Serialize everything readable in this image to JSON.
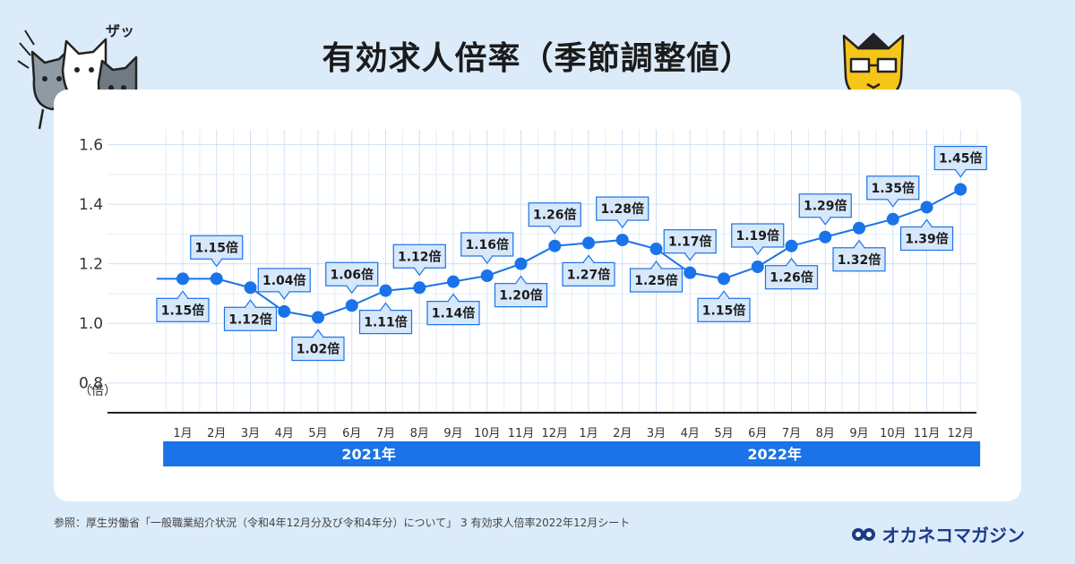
{
  "title": "有効求人倍率（季節調整値）",
  "source": "参照：厚生労働省「一般職業紹介状況（令和4年12月分及び令和4年分）について」 3 有効求人倍率2022年12月シート",
  "logo_text": "オカネコマガジン",
  "deco_text": "ザッ",
  "colors": {
    "line": "#1a73e8",
    "label_bg": "#d7e8fb",
    "year_bar": "#1a73e8",
    "background": "#dcebf9"
  },
  "chart_data": {
    "type": "line",
    "title": "有効求人倍率（季節調整値）",
    "ylabel": "（倍）",
    "ylim": [
      0.7,
      1.65
    ],
    "yticks": [
      0.8,
      1.0,
      1.2,
      1.4,
      1.6
    ],
    "ytick_labels": [
      "0.8",
      "1.0",
      "1.2",
      "1.4",
      "1.6"
    ],
    "grid": true,
    "categories": [
      "1月",
      "2月",
      "3月",
      "4月",
      "5月",
      "6月",
      "7月",
      "8月",
      "9月",
      "10月",
      "11月",
      "12月",
      "1月",
      "2月",
      "3月",
      "4月",
      "5月",
      "6月",
      "7月",
      "8月",
      "9月",
      "10月",
      "11月",
      "12月"
    ],
    "years": [
      {
        "label": "2021年",
        "start": 0,
        "end": 11
      },
      {
        "label": "2022年",
        "start": 12,
        "end": 23
      }
    ],
    "series": [
      {
        "values": [
          1.15,
          1.15,
          1.12,
          1.04,
          1.02,
          1.06,
          1.11,
          1.12,
          1.14,
          1.16,
          1.2,
          1.26,
          1.27,
          1.28,
          1.25,
          1.17,
          1.15,
          1.19,
          1.26,
          1.29,
          1.32,
          1.35,
          1.39,
          1.45
        ],
        "labels": [
          "1.15倍",
          "1.15倍",
          "1.12倍",
          "1.04倍",
          "1.02倍",
          "1.06倍",
          "1.11倍",
          "1.12倍",
          "1.14倍",
          "1.16倍",
          "1.20倍",
          "1.26倍",
          "1.27倍",
          "1.28倍",
          "1.25倍",
          "1.17倍",
          "1.15倍",
          "1.19倍",
          "1.26倍",
          "1.29倍",
          "1.32倍",
          "1.35倍",
          "1.39倍",
          "1.45倍"
        ],
        "label_pos": [
          "below",
          "above",
          "below",
          "above",
          "below",
          "above",
          "below",
          "above",
          "below",
          "above",
          "below",
          "above",
          "below",
          "above",
          "below",
          "above",
          "below",
          "above",
          "below",
          "above",
          "below",
          "above",
          "below",
          "above"
        ]
      }
    ]
  }
}
